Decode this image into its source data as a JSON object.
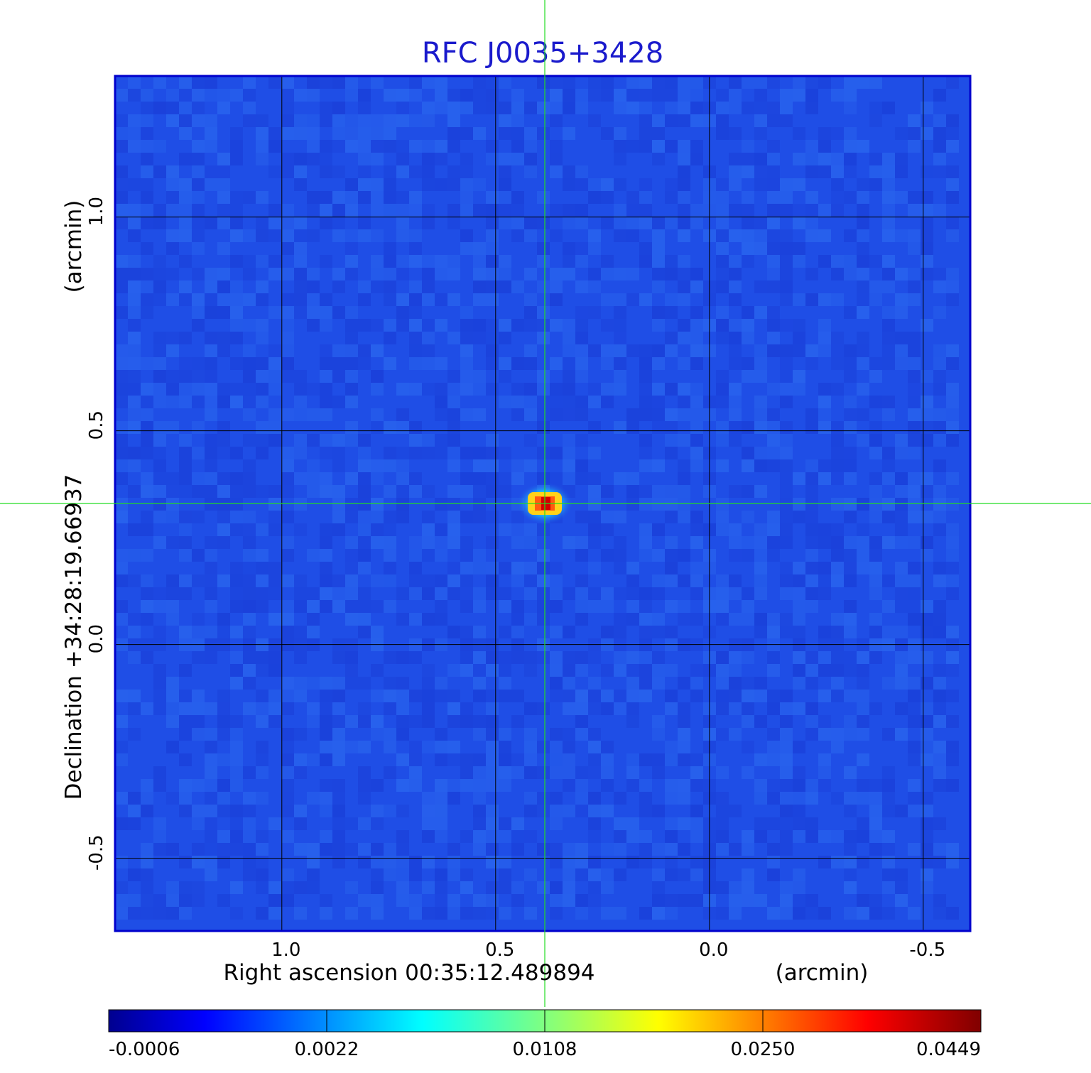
{
  "chart_data": {
    "type": "heatmap",
    "title": "RFC J0035+3428",
    "xlabel": "Right ascension  00:35:12.489894",
    "xunit": "(arcmin)",
    "ylabel": "Declination  +34:28:19.66937",
    "yunit": "(arcmin)",
    "x_ticks": [
      "1.0",
      "0.5",
      "0.0",
      "-0.5"
    ],
    "y_ticks": [
      "1.0",
      "0.5",
      "0.0",
      "-0.5"
    ],
    "xlim": [
      1.39,
      -0.61
    ],
    "ylim": [
      -0.67,
      1.33
    ],
    "x_axis_reversed": true,
    "grid": true,
    "crosshair": {
      "x": 0.385,
      "y": 0.33,
      "color": "#22dd22"
    },
    "source": {
      "x": 0.385,
      "y": 0.33,
      "peak": 0.0449
    },
    "colorbar": {
      "ticks": [
        "-0.0006",
        "0.0022",
        "0.0108",
        "0.0250",
        "0.0449"
      ],
      "colormap": "jet",
      "position": "bottom"
    }
  },
  "colors": {
    "title": "#1a1acc",
    "background_field": "#1f4ee6",
    "grid": "#000000",
    "crosshair": "#22dd22"
  }
}
